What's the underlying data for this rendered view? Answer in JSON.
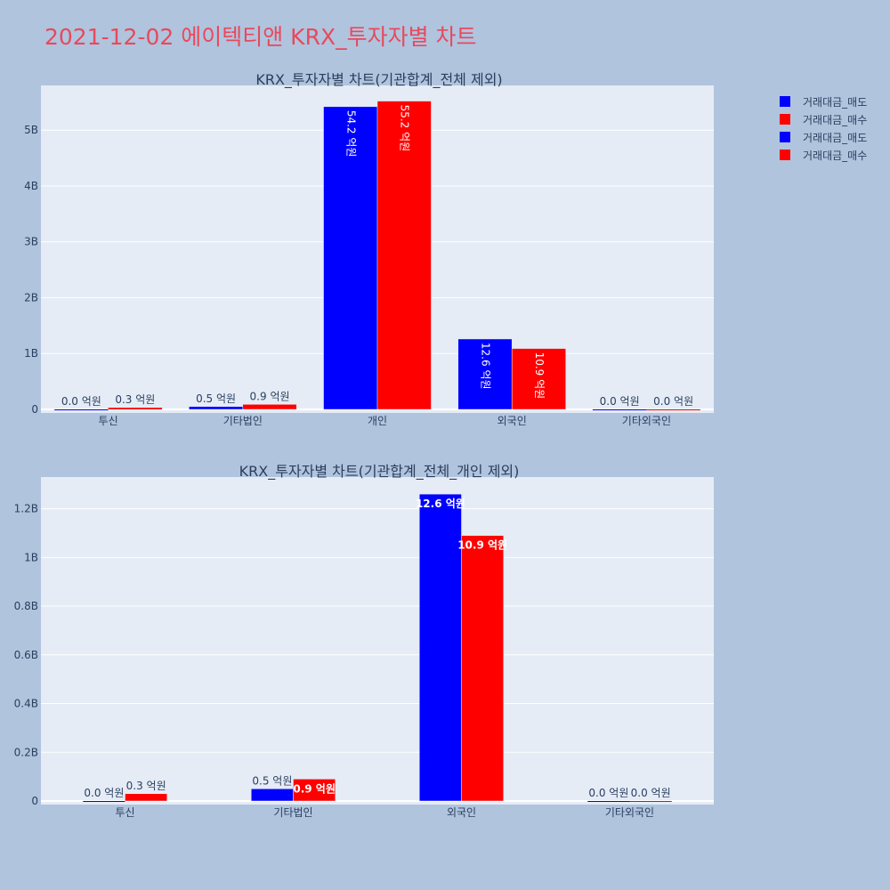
{
  "page": {
    "title": "2021-12-02 에이텍티앤 KRX_투자자별 차트"
  },
  "legend": {
    "entries": [
      {
        "label": "거래대금_매도",
        "color": "#0000ff"
      },
      {
        "label": "거래대금_매수",
        "color": "#ff0000"
      },
      {
        "label": "거래대금_매도",
        "color": "#0000ff"
      },
      {
        "label": "거래대금_매수",
        "color": "#ff0000"
      }
    ]
  },
  "colors": {
    "page_background": "#b0c4de",
    "plot_background": "#e5ecf6",
    "sell": "#0000ff",
    "buy": "#ff0000",
    "title": "#e8495c"
  },
  "chart_data": [
    {
      "type": "bar",
      "title": "KRX_투자자별 차트(기관합계_전체 제외)",
      "categories": [
        "투신",
        "기타법인",
        "개인",
        "외국인",
        "기타외국인"
      ],
      "series": [
        {
          "name": "거래대금_매도",
          "values": [
            0,
            50000000,
            5420000000,
            1260000000,
            0
          ],
          "labels": [
            "0.0 억원",
            "0.5 억원",
            "54.2 억원",
            "12.6 억원",
            "0.0 억원"
          ],
          "color": "#0000ff"
        },
        {
          "name": "거래대금_매수",
          "values": [
            30000000,
            90000000,
            5520000000,
            1090000000,
            0
          ],
          "labels": [
            "0.3 억원",
            "0.9 억원",
            "55.2 억원",
            "10.9 억원",
            "0.0 억원"
          ],
          "color": "#ff0000"
        }
      ],
      "ylim": [
        0,
        5800000000
      ],
      "yticks": [
        0,
        1000000000,
        2000000000,
        3000000000,
        4000000000,
        5000000000
      ],
      "ytick_labels": [
        "0",
        "1B",
        "2B",
        "3B",
        "4B",
        "5B"
      ],
      "label_orientation": "vertical-inside-when-fits",
      "grid": true
    },
    {
      "type": "bar",
      "title": "KRX_투자자별 차트(기관합계_전체_개인 제외)",
      "categories": [
        "투신",
        "기타법인",
        "외국인",
        "기타외국인"
      ],
      "series": [
        {
          "name": "거래대금_매도",
          "values": [
            0,
            50000000,
            1260000000,
            0
          ],
          "labels": [
            "0.0 억원",
            "0.5 억원",
            "12.6 억원",
            "0.0 억원"
          ],
          "color": "#0000ff"
        },
        {
          "name": "거래대금_매수",
          "values": [
            30000000,
            90000000,
            1090000000,
            0
          ],
          "labels": [
            "0.3 억원",
            "0.9 억원",
            "10.9 억원",
            "0.0 억원"
          ],
          "color": "#ff0000"
        }
      ],
      "ylim": [
        0,
        1330000000
      ],
      "yticks": [
        0,
        200000000,
        400000000,
        600000000,
        800000000,
        1000000000,
        1200000000
      ],
      "ytick_labels": [
        "0",
        "0.2B",
        "0.4B",
        "0.6B",
        "0.8B",
        "1B",
        "1.2B"
      ],
      "label_orientation": "horizontal-inside-when-fits",
      "grid": true
    }
  ]
}
